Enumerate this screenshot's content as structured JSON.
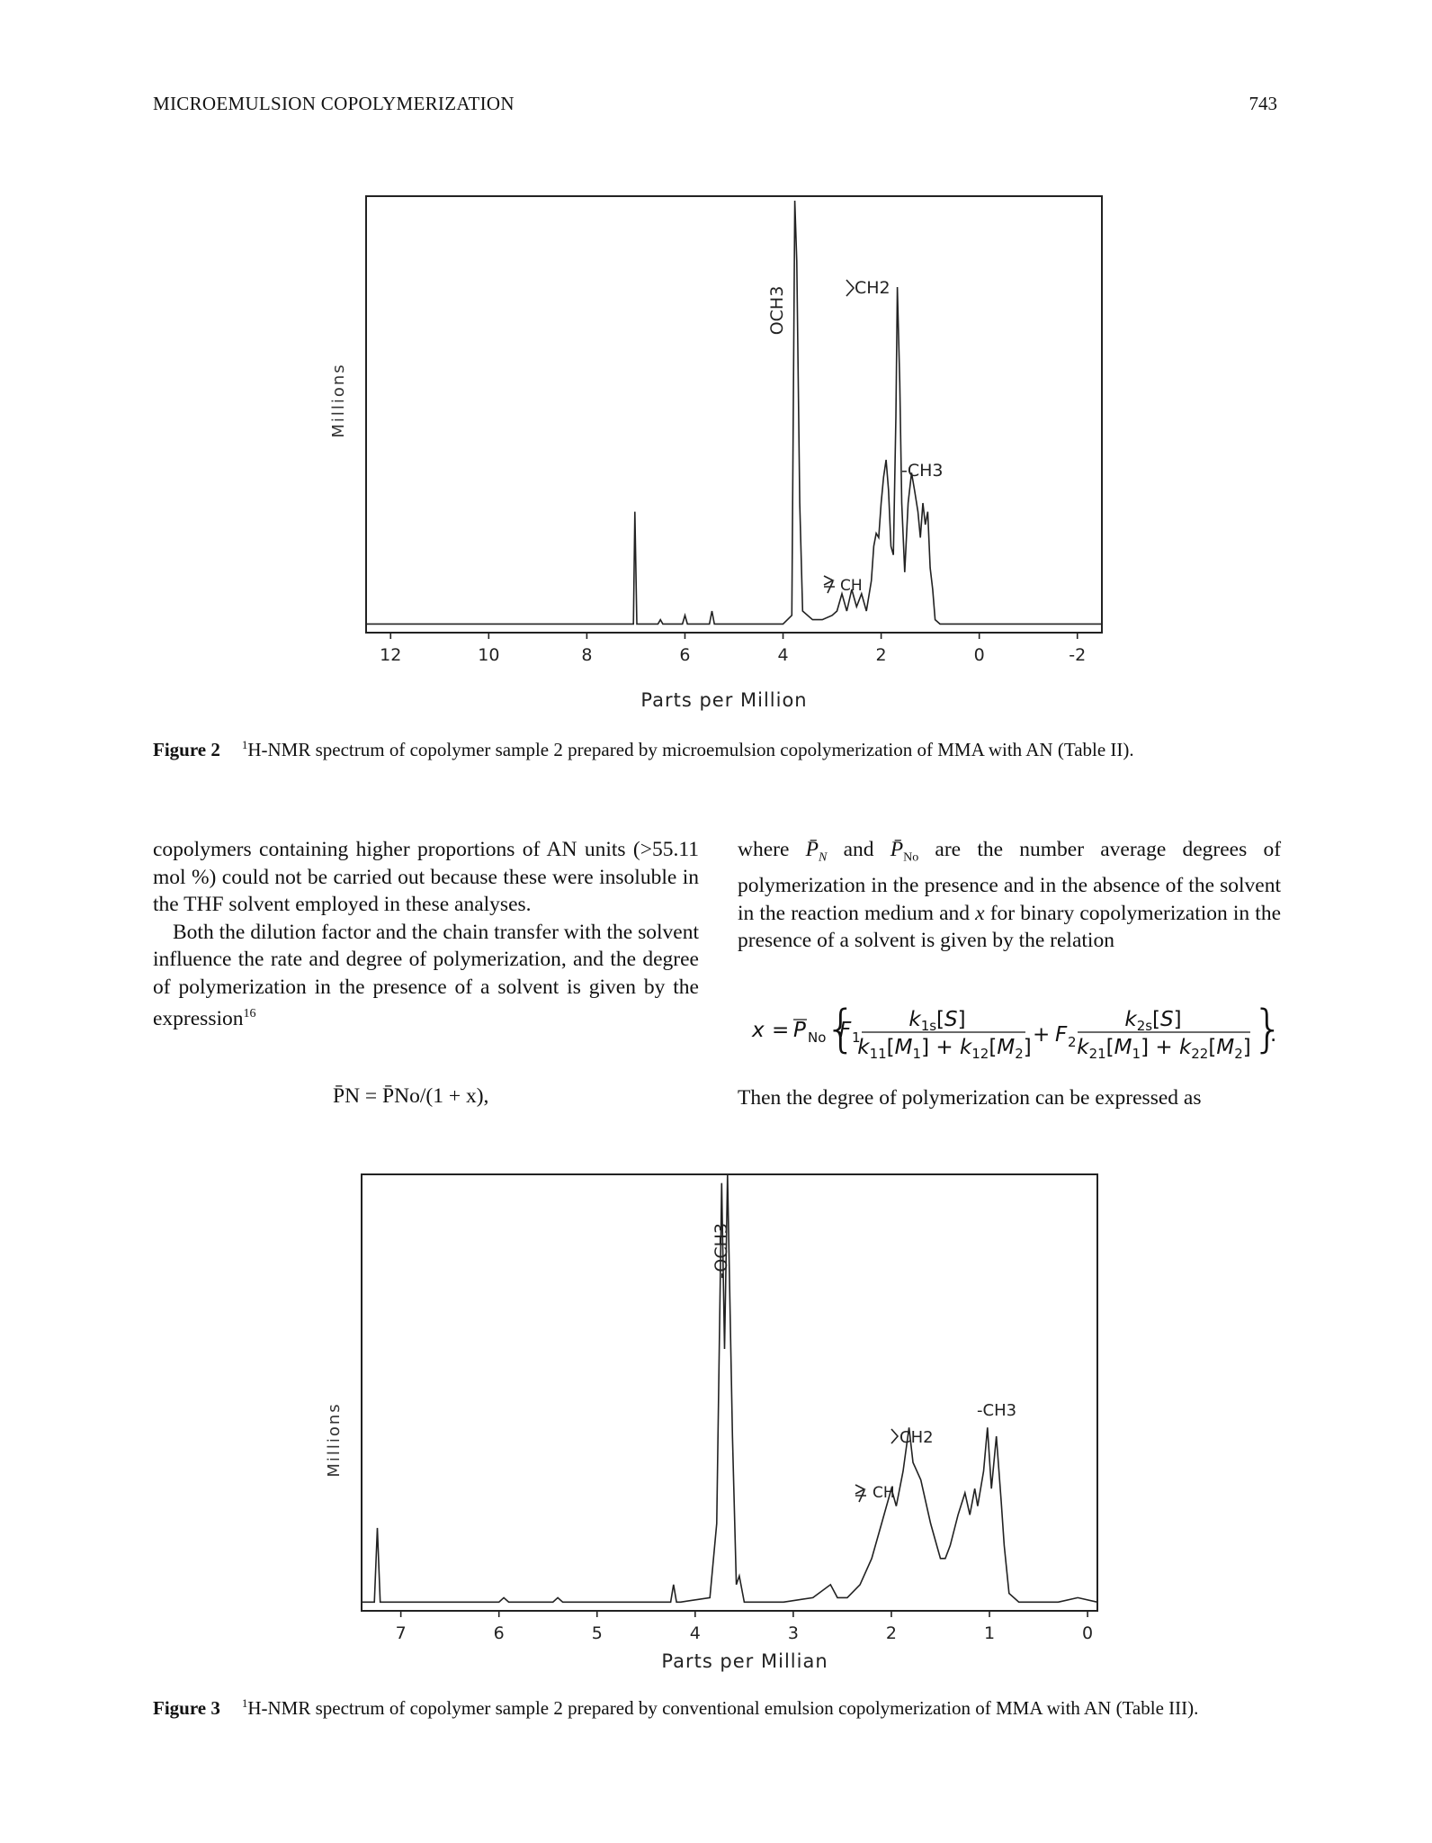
{
  "header": {
    "running_title": "MICROEMULSION COPOLYMERIZATION",
    "page_number": "743"
  },
  "figure2": {
    "label": "Figure 2",
    "caption_sup": "1",
    "caption": "H-NMR spectrum of copolymer sample 2 prepared by microemulsion copolymerization of MMA with AN (Table II).",
    "xlabel": "Parts per Million",
    "ylabel": "Millions",
    "ticks": [
      "12",
      "10",
      "8",
      "6",
      "4",
      "2",
      "0",
      "-2"
    ],
    "annotations": {
      "och3": "OCH3",
      "ch2": "CH2",
      "ch3": "-CH3",
      "ch": "CH"
    }
  },
  "figure3": {
    "label": "Figure 3",
    "caption_sup": "1",
    "caption": "H-NMR spectrum of copolymer sample 2 prepared by conventional emulsion copolymerization of MMA with AN (Table III).",
    "xlabel": "Parts per Millian",
    "ylabel": "Millions",
    "ticks": [
      "7",
      "6",
      "5",
      "4",
      "3",
      "2",
      "1",
      "0"
    ],
    "annotations": {
      "och3": "-OCH3",
      "ch2": "CH2",
      "ch3": "-CH3",
      "ch": "CH"
    }
  },
  "body": {
    "left_p1": "copolymers containing higher proportions of AN units (>55.11 mol %) could not be carried out because these were insoluble in the THF solvent employed in these analyses.",
    "left_p2_a": "Both the dilution factor and the chain transfer with the solvent influence the rate and degree of polymerization, and the degree of polymerization in the presence of a solvent is given by the expression",
    "left_p2_ref": "16",
    "eq1": "P̄N = P̄No/(1 + x),",
    "right_p1_a": "where",
    "right_p1_b": "and",
    "right_p1_c": "are the number average degrees of polymerization in the presence and in the absence of the solvent in the reaction medium and",
    "right_p1_d": "for binary copolymerization in the presence of a solvent is given by the relation",
    "right_p2": "Then the degree of polymerization can be expressed as"
  },
  "chart_data": [
    {
      "type": "line",
      "title": "",
      "xlabel": "Parts per Million",
      "ylabel": "Millions",
      "x_reversed": true,
      "xlim": [
        12.5,
        -2.5
      ],
      "ylim": [
        0,
        100
      ],
      "x_ticks": [
        12,
        10,
        8,
        6,
        4,
        2,
        0,
        -2
      ],
      "grid": false,
      "series": [
        {
          "values": [
            [
              12.5,
              2
            ],
            [
              7.7,
              2
            ],
            [
              7.05,
              2
            ],
            [
              7.02,
              28
            ],
            [
              6.98,
              2
            ],
            [
              6.55,
              2
            ],
            [
              6.5,
              3
            ],
            [
              6.45,
              2
            ],
            [
              6.05,
              2
            ],
            [
              6.0,
              4
            ],
            [
              5.95,
              2
            ],
            [
              5.5,
              2
            ],
            [
              5.45,
              5
            ],
            [
              5.4,
              2
            ],
            [
              4.0,
              2
            ],
            [
              3.82,
              4
            ],
            [
              3.76,
              100
            ],
            [
              3.72,
              86
            ],
            [
              3.66,
              30
            ],
            [
              3.6,
              5
            ],
            [
              3.4,
              3
            ],
            [
              3.2,
              3
            ],
            [
              3.0,
              4
            ],
            [
              2.9,
              5
            ],
            [
              2.8,
              9
            ],
            [
              2.7,
              5
            ],
            [
              2.6,
              10
            ],
            [
              2.5,
              6
            ],
            [
              2.4,
              9
            ],
            [
              2.3,
              5
            ],
            [
              2.2,
              12
            ],
            [
              2.15,
              20
            ],
            [
              2.1,
              23
            ],
            [
              2.05,
              22
            ],
            [
              2.0,
              30
            ],
            [
              1.95,
              36
            ],
            [
              1.9,
              40
            ],
            [
              1.85,
              33
            ],
            [
              1.8,
              20
            ],
            [
              1.75,
              18
            ],
            [
              1.7,
              50
            ],
            [
              1.67,
              80
            ],
            [
              1.62,
              58
            ],
            [
              1.58,
              30
            ],
            [
              1.52,
              14
            ],
            [
              1.45,
              30
            ],
            [
              1.38,
              37
            ],
            [
              1.32,
              33
            ],
            [
              1.25,
              28
            ],
            [
              1.2,
              22
            ],
            [
              1.15,
              30
            ],
            [
              1.1,
              25
            ],
            [
              1.05,
              28
            ],
            [
              1.0,
              15
            ],
            [
              0.95,
              10
            ],
            [
              0.9,
              3
            ],
            [
              0.8,
              2
            ],
            [
              0.0,
              2
            ],
            [
              -2.5,
              2
            ]
          ]
        }
      ],
      "annotations": [
        "OCH3",
        "CH2",
        "-CH3",
        "CH"
      ]
    },
    {
      "type": "line",
      "title": "",
      "xlabel": "Parts per Millian",
      "ylabel": "Millions",
      "x_reversed": true,
      "xlim": [
        7.4,
        -0.1
      ],
      "ylim": [
        0,
        100
      ],
      "x_ticks": [
        7,
        6,
        5,
        4,
        3,
        2,
        1,
        0
      ],
      "grid": false,
      "series": [
        {
          "values": [
            [
              7.4,
              2
            ],
            [
              7.27,
              2
            ],
            [
              7.24,
              19
            ],
            [
              7.21,
              2
            ],
            [
              6.0,
              2
            ],
            [
              5.95,
              3
            ],
            [
              5.9,
              2
            ],
            [
              5.45,
              2
            ],
            [
              5.4,
              3
            ],
            [
              5.35,
              2
            ],
            [
              4.25,
              2
            ],
            [
              4.22,
              6
            ],
            [
              4.19,
              2
            ],
            [
              4.15,
              2
            ],
            [
              3.85,
              3
            ],
            [
              3.78,
              20
            ],
            [
              3.73,
              98
            ],
            [
              3.7,
              60
            ],
            [
              3.67,
              100
            ],
            [
              3.62,
              40
            ],
            [
              3.58,
              6
            ],
            [
              3.55,
              8
            ],
            [
              3.5,
              2
            ],
            [
              3.4,
              2
            ],
            [
              3.1,
              2
            ],
            [
              2.8,
              3
            ],
            [
              2.62,
              6
            ],
            [
              2.55,
              3
            ],
            [
              2.45,
              3
            ],
            [
              2.32,
              6
            ],
            [
              2.2,
              12
            ],
            [
              2.1,
              20
            ],
            [
              2.0,
              28
            ],
            [
              1.95,
              24
            ],
            [
              1.88,
              32
            ],
            [
              1.82,
              42
            ],
            [
              1.78,
              34
            ],
            [
              1.7,
              30
            ],
            [
              1.6,
              20
            ],
            [
              1.5,
              12
            ],
            [
              1.45,
              12
            ],
            [
              1.4,
              15
            ],
            [
              1.32,
              22
            ],
            [
              1.25,
              27
            ],
            [
              1.2,
              22
            ],
            [
              1.15,
              28
            ],
            [
              1.12,
              24
            ],
            [
              1.06,
              32
            ],
            [
              1.02,
              42
            ],
            [
              0.98,
              28
            ],
            [
              0.93,
              40
            ],
            [
              0.88,
              25
            ],
            [
              0.85,
              15
            ],
            [
              0.8,
              4
            ],
            [
              0.7,
              2
            ],
            [
              0.3,
              2
            ],
            [
              0.1,
              3
            ],
            [
              -0.1,
              2
            ]
          ]
        }
      ],
      "annotations": [
        "-OCH3",
        "CH2",
        "-CH3",
        "CH"
      ]
    }
  ]
}
